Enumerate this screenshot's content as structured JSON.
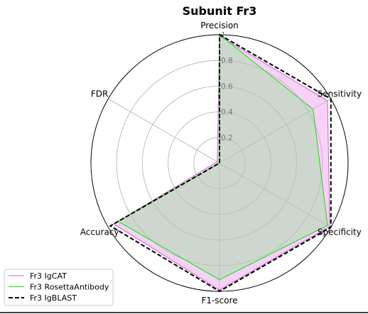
{
  "chart_data": {
    "type": "radar",
    "title": "Subunit Fr3",
    "axes": [
      "Precision",
      "Sensitivity",
      "Specificity",
      "F1-score",
      "Accuracy",
      "FDR"
    ],
    "rlim": [
      0,
      1
    ],
    "radial_ticks": [
      0.2,
      0.4,
      0.6,
      0.8,
      1
    ],
    "radial_tick_labels": [
      "0.2",
      "0.4",
      "0.6",
      "0.8",
      "1"
    ],
    "grid": true,
    "legend_position": "lower-left",
    "series": [
      {
        "name": "Fr3 IgCAT",
        "values": [
          0.99,
          0.97,
          0.99,
          0.99,
          0.95,
          0.02
        ],
        "color": "#cc66cc",
        "fill": "#ee99ee",
        "line_style": "solid"
      },
      {
        "name": "Fr3 RosettaAntibody",
        "values": [
          1.0,
          0.84,
          0.97,
          0.91,
          0.91,
          0.0
        ],
        "color": "#00ee00",
        "fill": "#99dd99",
        "line_style": "solid"
      },
      {
        "name": "Fr3 IgBLAST",
        "values": [
          1.0,
          1.0,
          1.0,
          1.0,
          0.98,
          0.0
        ],
        "color": "#000000",
        "fill": "none",
        "line_style": "dashed"
      }
    ]
  }
}
